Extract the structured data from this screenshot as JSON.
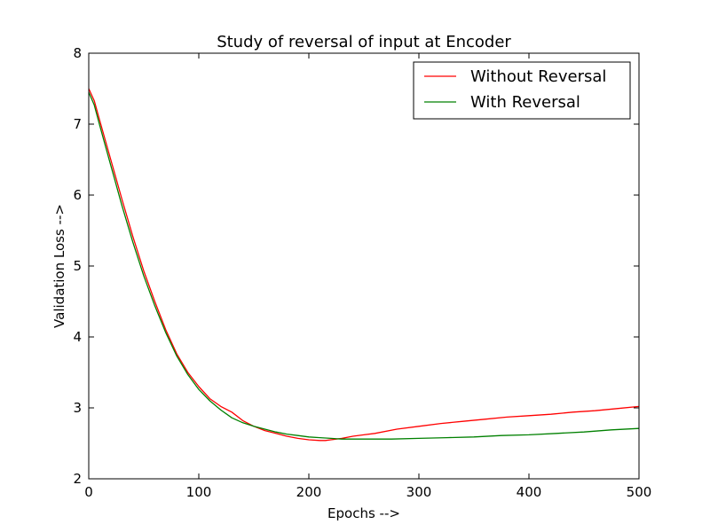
{
  "chart_data": {
    "type": "line",
    "title": "Study of reversal of input at Encoder",
    "xlabel": "Epochs -->",
    "ylabel": "Validation Loss -->",
    "xlim": [
      0,
      500
    ],
    "ylim": [
      2,
      8
    ],
    "xticks": [
      0,
      100,
      200,
      300,
      400,
      500
    ],
    "yticks": [
      2,
      3,
      4,
      5,
      6,
      7,
      8
    ],
    "grid": false,
    "legend_position": "top-right",
    "series": [
      {
        "name": "Without Reversal",
        "color": "#ff0000",
        "x": [
          0,
          5,
          10,
          20,
          30,
          40,
          50,
          60,
          70,
          80,
          90,
          100,
          110,
          120,
          130,
          140,
          150,
          160,
          170,
          180,
          190,
          200,
          210,
          215,
          220,
          230,
          240,
          250,
          260,
          280,
          300,
          320,
          340,
          360,
          380,
          400,
          420,
          440,
          460,
          480,
          500
        ],
        "y": [
          7.5,
          7.33,
          7.05,
          6.5,
          5.95,
          5.42,
          4.93,
          4.5,
          4.1,
          3.76,
          3.5,
          3.3,
          3.13,
          3.02,
          2.94,
          2.82,
          2.74,
          2.68,
          2.64,
          2.6,
          2.57,
          2.55,
          2.54,
          2.54,
          2.55,
          2.57,
          2.6,
          2.62,
          2.64,
          2.7,
          2.74,
          2.78,
          2.81,
          2.84,
          2.87,
          2.89,
          2.91,
          2.94,
          2.96,
          2.99,
          3.02
        ]
      },
      {
        "name": "With Reversal",
        "color": "#008000",
        "x": [
          0,
          5,
          10,
          20,
          30,
          40,
          50,
          60,
          70,
          80,
          90,
          100,
          110,
          120,
          130,
          140,
          150,
          160,
          170,
          180,
          190,
          200,
          210,
          220,
          230,
          250,
          275,
          300,
          325,
          350,
          375,
          400,
          425,
          450,
          475,
          500
        ],
        "y": [
          7.45,
          7.27,
          6.98,
          6.42,
          5.86,
          5.34,
          4.86,
          4.44,
          4.06,
          3.73,
          3.47,
          3.26,
          3.1,
          2.97,
          2.86,
          2.79,
          2.74,
          2.7,
          2.66,
          2.63,
          2.61,
          2.59,
          2.58,
          2.57,
          2.56,
          2.56,
          2.56,
          2.57,
          2.58,
          2.59,
          2.61,
          2.62,
          2.64,
          2.66,
          2.69,
          2.71
        ]
      }
    ]
  }
}
